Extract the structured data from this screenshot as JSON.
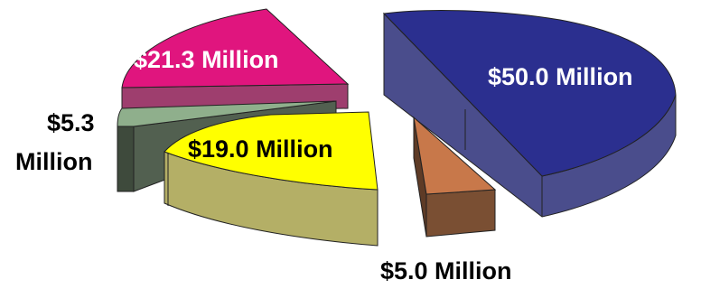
{
  "chart_data": {
    "type": "pie",
    "style": "3d-exploded",
    "title": "",
    "slices": [
      {
        "label": "$50.0 Million",
        "value": 50.0,
        "color": "#2B2F8F",
        "label_color": "#ffffff"
      },
      {
        "label": "$5.0 Million",
        "value": 5.0,
        "color": "#C8784A",
        "label_color": "#000000"
      },
      {
        "label": "$19.0 Million",
        "value": 19.0,
        "color": "#FFFF00",
        "label_color": "#000000"
      },
      {
        "label_lines": [
          "$5.3",
          "Million"
        ],
        "value": 5.3,
        "color": "#8FAF8C",
        "label_color": "#000000"
      },
      {
        "label": "$21.3 Million",
        "value": 21.3,
        "color": "#E0157E",
        "label_color": "#ffffff"
      }
    ]
  }
}
